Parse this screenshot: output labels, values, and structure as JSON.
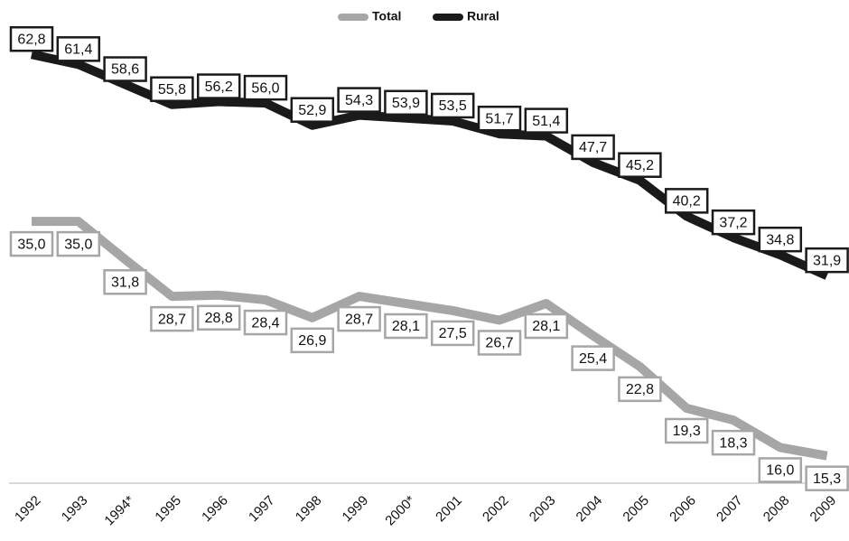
{
  "chart_data": {
    "type": "line",
    "categories": [
      "1992",
      "1993",
      "1994*",
      "1995",
      "1996",
      "1997",
      "1998",
      "1999",
      "2000*",
      "2001",
      "2002",
      "2003",
      "2004",
      "2005",
      "2006",
      "2007",
      "2008",
      "2009"
    ],
    "series": [
      {
        "name": "Total",
        "color": "#a6a6a6",
        "values": [
          35.0,
          35.0,
          31.8,
          28.7,
          28.8,
          28.4,
          26.9,
          28.7,
          28.1,
          27.5,
          26.7,
          28.1,
          25.4,
          22.8,
          19.3,
          18.3,
          16.0,
          15.3
        ],
        "value_labels": [
          "35,0",
          "35,0",
          "31,8",
          "28,7",
          "28,8",
          "28,4",
          "26,9",
          "28,7",
          "28,1",
          "27,5",
          "26,7",
          "28,1",
          "25,4",
          "22,8",
          "19,3",
          "18,3",
          "16,0",
          "15,3"
        ]
      },
      {
        "name": "Rural",
        "color": "#1a1a1a",
        "axis": "y2",
        "values": [
          62.8,
          61.4,
          58.6,
          55.8,
          56.2,
          56.0,
          52.9,
          54.3,
          53.9,
          53.5,
          51.7,
          51.4,
          47.7,
          45.2,
          40.2,
          37.2,
          34.8,
          31.9
        ],
        "value_labels": [
          "62,8",
          "61,4",
          "58,6",
          "55,8",
          "56,2",
          "56,0",
          "52,9",
          "54,3",
          "53,9",
          "53,5",
          "51,7",
          "51,4",
          "47,7",
          "45,2",
          "40,2",
          "37,2",
          "34,8",
          "31,9"
        ]
      }
    ],
    "ylim": [
      13,
      53.6
    ],
    "y2lim": [
      2.9,
      70.4
    ],
    "legend": "top"
  }
}
